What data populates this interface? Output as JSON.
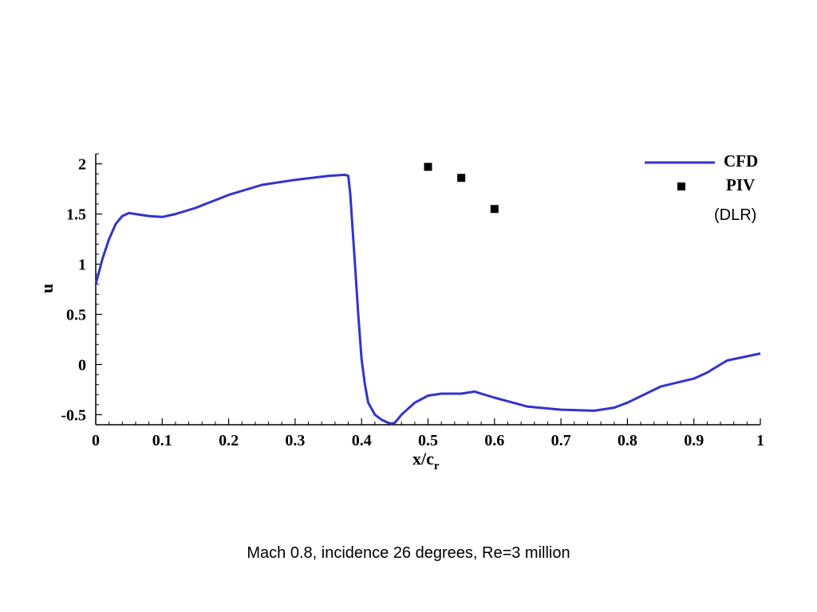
{
  "caption": "Mach 0.8, incidence 26 degrees, Re=3 million",
  "chart_data": {
    "type": "line",
    "xlabel": "x/c",
    "xlabel_sub": "r",
    "ylabel": "u",
    "xlim": [
      0,
      1
    ],
    "ylim": [
      -0.6,
      2.1
    ],
    "x_ticks": [
      0,
      0.1,
      0.2,
      0.3,
      0.4,
      0.5,
      0.6,
      0.7,
      0.8,
      0.9,
      1
    ],
    "x_tick_labels": [
      "0",
      "0.1",
      "0.2",
      "0.3",
      "0.4",
      "0.5",
      "0.6",
      "0.7",
      "0.8",
      "0.9",
      "1"
    ],
    "y_ticks": [
      -0.5,
      0,
      0.5,
      1,
      1.5,
      2
    ],
    "y_tick_labels": [
      "-0.5",
      "0",
      "0.5",
      "1",
      "1.5",
      "2"
    ],
    "grid": false,
    "legend_position": "top-right",
    "colors": {
      "CFD": "#3333cc",
      "PIV": "#000000"
    },
    "series": [
      {
        "name": "CFD",
        "style": "line",
        "x": [
          0,
          0.01,
          0.02,
          0.03,
          0.04,
          0.05,
          0.06,
          0.08,
          0.1,
          0.12,
          0.15,
          0.2,
          0.25,
          0.3,
          0.35,
          0.375,
          0.38,
          0.383,
          0.386,
          0.39,
          0.395,
          0.4,
          0.405,
          0.41,
          0.42,
          0.43,
          0.44,
          0.445,
          0.45,
          0.46,
          0.48,
          0.5,
          0.52,
          0.55,
          0.57,
          0.6,
          0.65,
          0.7,
          0.75,
          0.78,
          0.8,
          0.85,
          0.9,
          0.92,
          0.95,
          1.0
        ],
        "y": [
          0.8,
          1.05,
          1.25,
          1.4,
          1.48,
          1.51,
          1.5,
          1.48,
          1.47,
          1.5,
          1.56,
          1.69,
          1.79,
          1.84,
          1.88,
          1.89,
          1.88,
          1.7,
          1.4,
          1.0,
          0.5,
          0.05,
          -0.2,
          -0.38,
          -0.5,
          -0.55,
          -0.58,
          -0.59,
          -0.58,
          -0.5,
          -0.38,
          -0.31,
          -0.29,
          -0.29,
          -0.27,
          -0.33,
          -0.42,
          -0.45,
          -0.46,
          -0.43,
          -0.38,
          -0.22,
          -0.14,
          -0.08,
          0.04,
          0.11
        ]
      },
      {
        "name": "PIV",
        "style": "markers",
        "x": [
          0.5,
          0.55,
          0.6
        ],
        "y": [
          1.97,
          1.86,
          1.55
        ]
      }
    ],
    "legend_note": "(DLR)"
  }
}
